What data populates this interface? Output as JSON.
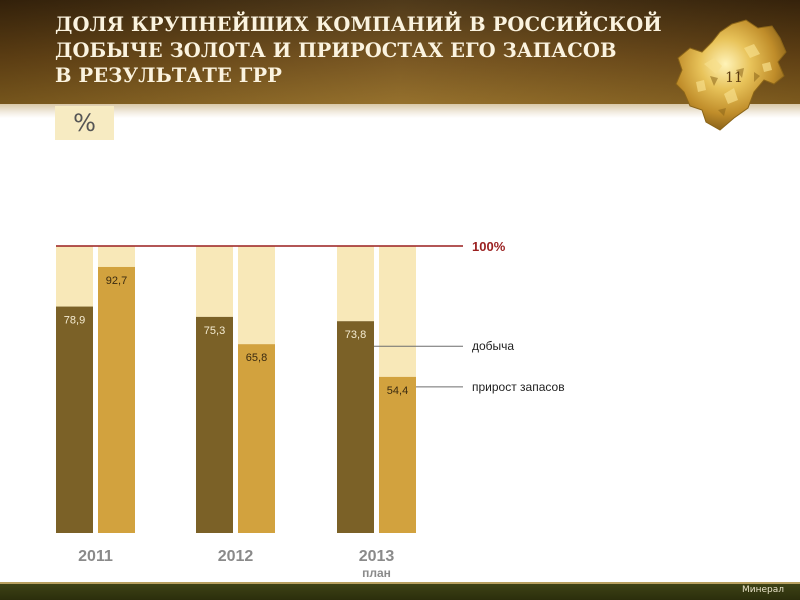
{
  "header": {
    "title_lines": [
      "ДОЛЯ КРУПНЕЙШИХ КОМПАНИЙ В РОССИЙСКОЙ",
      "ДОБЫЧЕ ЗОЛОТА И ПРИРОСТАХ ЕГО ЗАПАСОВ",
      "В РЕЗУЛЬТАТЕ ГРР"
    ],
    "page_number": "11"
  },
  "unit": "%",
  "footer": {
    "brand": "Минерал"
  },
  "colors": {
    "production": "#7b6127",
    "reserves": "#d2a23e",
    "remainder": "#f8e8b8",
    "reference_line": "#9a1f1f",
    "reference_label": "#9a1f1f",
    "category_label": "#8a8a8a"
  },
  "chart_data": {
    "type": "bar",
    "categories": [
      "2011",
      "2012",
      "2013"
    ],
    "category_sublabels": [
      "",
      "",
      "план"
    ],
    "series": [
      {
        "name": "добыча",
        "values": [
          78.9,
          75.3,
          73.8
        ],
        "labels": [
          "78,9",
          "75,3",
          "73,8"
        ]
      },
      {
        "name": "прирост запасов",
        "values": [
          92.7,
          65.8,
          54.4
        ],
        "labels": [
          "92,7",
          "65,8",
          "54,4"
        ]
      }
    ],
    "reference_line": {
      "value": 100,
      "label": "100%"
    },
    "ylim": [
      0,
      100
    ],
    "title": "",
    "xlabel": "",
    "ylabel": ""
  }
}
